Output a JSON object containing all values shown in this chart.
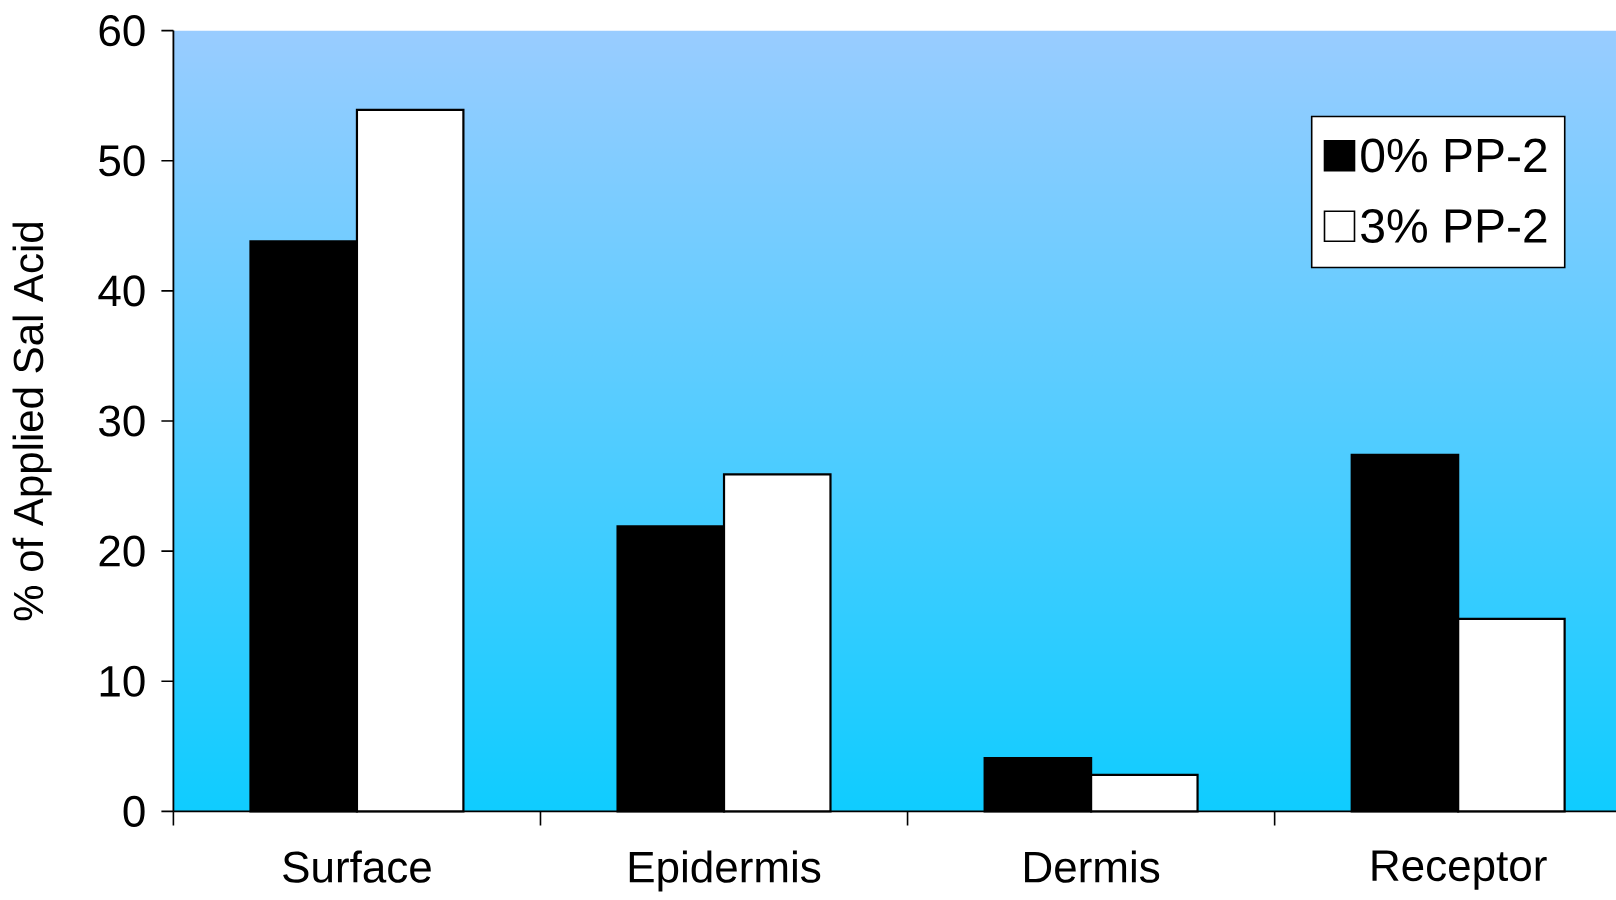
{
  "chart_data": {
    "type": "bar",
    "ylabel": "% of Applied Sal Acid",
    "categories": [
      "Surface",
      "Epidermis",
      "Dermis",
      "Receptor"
    ],
    "series": [
      {
        "name": "0% PP-2",
        "color": "#000000",
        "values": [
          43.8,
          21.9,
          4.1,
          27.4
        ]
      },
      {
        "name": "3% PP-2",
        "color": "#ffffff",
        "values": [
          53.9,
          25.9,
          2.8,
          14.8
        ]
      }
    ],
    "ylim": [
      0,
      60
    ],
    "yticks": [
      0,
      10,
      20,
      30,
      40,
      50,
      60
    ],
    "legend": "top right"
  }
}
